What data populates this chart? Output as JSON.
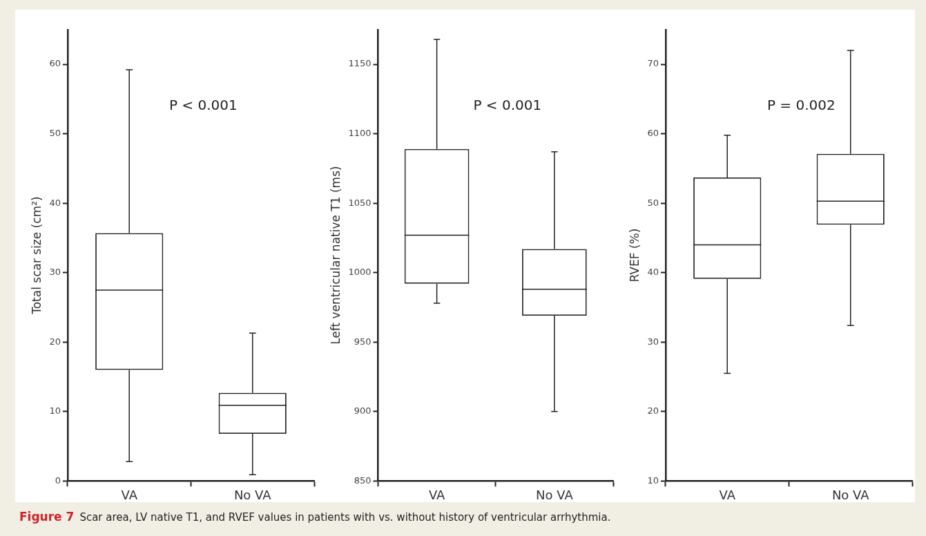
{
  "chart_data": [
    {
      "type": "box",
      "categories": [
        "VA",
        "No VA"
      ],
      "color": "#222222",
      "ylabel": "Total scar size (cm²)",
      "ylim": [
        0,
        65
      ],
      "yticks": [
        0,
        10,
        20,
        30,
        40,
        50,
        60
      ],
      "annotations": [
        "P < 0.001"
      ],
      "boxes": [
        {
          "low": 2.8,
          "q1": 16,
          "median": 27.5,
          "q3": 35.7,
          "high": 59.2
        },
        {
          "low": 0.9,
          "q1": 6.8,
          "median": 10.9,
          "q3": 12.7,
          "high": 21.3
        }
      ]
    },
    {
      "type": "box",
      "categories": [
        "VA",
        "No VA"
      ],
      "color": "#222222",
      "ylabel": "Left ventricular native T1 (ms)",
      "ylim": [
        850,
        1175
      ],
      "yticks": [
        850,
        900,
        950,
        1000,
        1050,
        1100,
        1150
      ],
      "annotations": [
        "P < 0.001"
      ],
      "boxes": [
        {
          "low": 978,
          "q1": 992,
          "median": 1027,
          "q3": 1089,
          "high": 1168
        },
        {
          "low": 900,
          "q1": 969,
          "median": 988,
          "q3": 1017,
          "high": 1087
        }
      ]
    },
    {
      "type": "box",
      "categories": [
        "VA",
        "No VA"
      ],
      "color": "#222222",
      "ylabel": "RVEF (%)",
      "ylim": [
        10,
        75
      ],
      "yticks": [
        10,
        20,
        30,
        40,
        50,
        60,
        70
      ],
      "annotations": [
        "P = 0.002"
      ],
      "boxes": [
        {
          "low": 25.5,
          "q1": 39.1,
          "median": 44,
          "q3": 53.7,
          "high": 59.8
        },
        {
          "low": 32.4,
          "q1": 46.9,
          "median": 50.3,
          "q3": 57.1,
          "high": 72
        }
      ]
    },
    {
      "type": "other",
      "annotations": [
        "Figure 7",
        "Scar area, LV native T1, and RVEF values in patients with vs. without history of ventricular arrhythmia."
      ]
    }
  ]
}
